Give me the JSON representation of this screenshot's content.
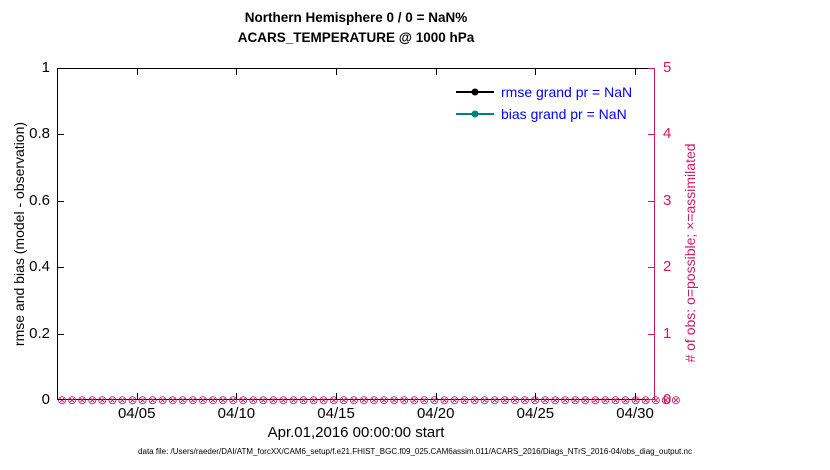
{
  "title": {
    "line1": "Northern Hemisphere 0 / 0 = NaN%",
    "line2": "ACARS_TEMPERATURE @ 1000 hPa"
  },
  "left_axis": {
    "label": "rmse and bias (model - observation)",
    "min": 0,
    "max": 1,
    "color": "#000000",
    "ticks": [
      {
        "value": 0,
        "label": "0"
      },
      {
        "value": 0.2,
        "label": "0.2"
      },
      {
        "value": 0.4,
        "label": "0.4"
      },
      {
        "value": 0.6,
        "label": "0.6"
      },
      {
        "value": 0.8,
        "label": "0.8"
      },
      {
        "value": 1,
        "label": "1"
      }
    ]
  },
  "right_axis": {
    "label": "# of obs: o=possible; ×=assimilated",
    "min": 0,
    "max": 5,
    "color": "#cc1a66",
    "ticks": [
      {
        "value": 0,
        "label": "0"
      },
      {
        "value": 1,
        "label": "1"
      },
      {
        "value": 2,
        "label": "2"
      },
      {
        "value": 3,
        "label": "3"
      },
      {
        "value": 4,
        "label": "4"
      },
      {
        "value": 5,
        "label": "5"
      }
    ]
  },
  "x_axis": {
    "label": "Apr.01,2016 00:00:00 start",
    "min_day": 1,
    "max_day": 31,
    "ticks": [
      {
        "day": 5,
        "label": "04/05"
      },
      {
        "day": 10,
        "label": "04/10"
      },
      {
        "day": 15,
        "label": "04/15"
      },
      {
        "day": 20,
        "label": "04/20"
      },
      {
        "day": 25,
        "label": "04/25"
      },
      {
        "day": 30,
        "label": "04/30"
      }
    ]
  },
  "legend": {
    "items": [
      {
        "label": "rmse grand pr = NaN",
        "color": "#000000",
        "text_color": "#0000ff"
      },
      {
        "label": "bias grand pr = NaN",
        "color": "#008080",
        "text_color": "#0000ff"
      }
    ]
  },
  "obs_markers": {
    "glyph": "⊗",
    "count": 62,
    "color": "#cc1a66",
    "value": 0
  },
  "footer": "data file: /Users/raeder/DAI/ATM_forcXX/CAM6_setup/f.e21.FHIST_BGC.f09_025.CAM6assim.011/ACARS_2016/Diags_NTrS_2016-04/obs_diag_output.nc",
  "chart_data": {
    "type": "line",
    "title": "Northern Hemisphere 0 / 0 = NaN% — ACARS_TEMPERATURE @ 1000 hPa",
    "xlabel": "Apr.01,2016 00:00:00 start",
    "x_tick_labels": [
      "04/05",
      "04/10",
      "04/15",
      "04/20",
      "04/25",
      "04/30"
    ],
    "x_range_days": [
      1,
      31
    ],
    "ylabel_left": "rmse and bias (model - observation)",
    "ylim_left": [
      0,
      1
    ],
    "ylabel_right": "# of obs: o=possible; ×=assimilated",
    "ylim_right": [
      0,
      5
    ],
    "grid": false,
    "legend_position": "upper-right-inside",
    "series": [
      {
        "name": "rmse grand pr = NaN",
        "axis": "left",
        "color": "#000000",
        "marker": "filled-circle",
        "values": [],
        "note": "all values NaN — no curve plotted"
      },
      {
        "name": "bias grand pr = NaN",
        "axis": "left",
        "color": "#008080",
        "marker": "filled-circle",
        "values": [],
        "note": "all values NaN — no curve plotted"
      },
      {
        "name": "# of obs possible (o)",
        "axis": "right",
        "color": "#cc1a66",
        "marker": "open-circle",
        "constant_value": 0,
        "point_count": 62
      },
      {
        "name": "# of obs assimilated (×)",
        "axis": "right",
        "color": "#cc1a66",
        "marker": "x",
        "constant_value": 0,
        "point_count": 62
      }
    ]
  }
}
